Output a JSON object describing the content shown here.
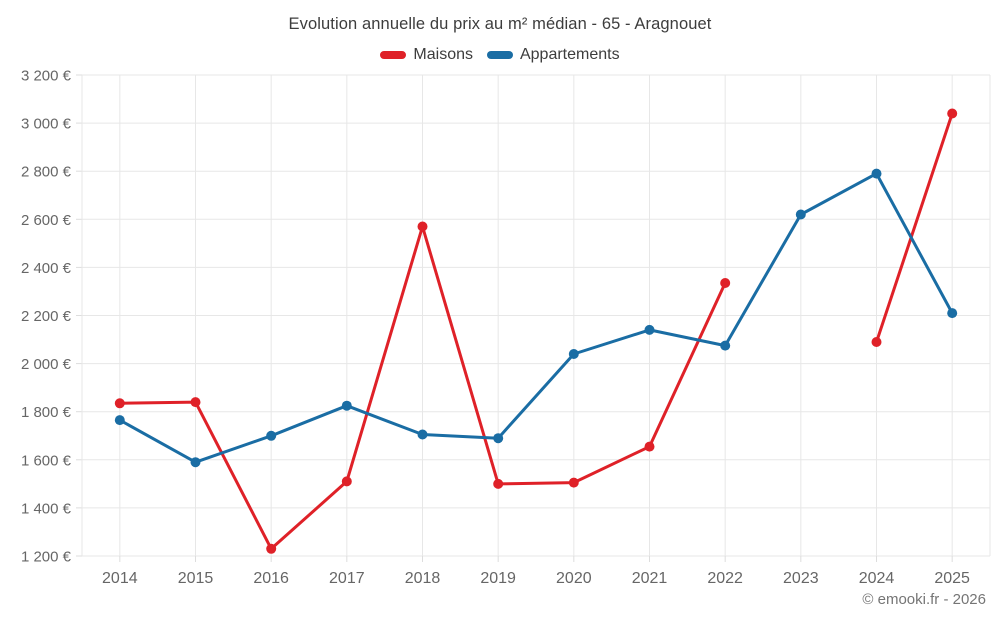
{
  "title": "Evolution annuelle du prix au m² médian - 65 - Aragnouet",
  "footer": "© emooki.fr - 2026",
  "colors": {
    "maisons": "#df2128",
    "appartements": "#1a6da4",
    "grid": "#e7e7e7",
    "tick": "#dddddd",
    "axis_text": "#666666"
  },
  "chart_data": {
    "type": "line",
    "title": "Evolution annuelle du prix au m² médian - 65 - Aragnouet",
    "categories": [
      "2014",
      "2015",
      "2016",
      "2017",
      "2018",
      "2019",
      "2020",
      "2021",
      "2022",
      "2023",
      "2024",
      "2025"
    ],
    "series": [
      {
        "name": "Maisons",
        "color": "#df2128",
        "values": [
          1835,
          1840,
          1230,
          1510,
          2570,
          1500,
          1505,
          1655,
          2335,
          null,
          2090,
          3040
        ]
      },
      {
        "name": "Appartements",
        "color": "#1a6da4",
        "values": [
          1765,
          1590,
          1700,
          1825,
          1705,
          1690,
          2040,
          2140,
          2075,
          2620,
          2790,
          2210
        ]
      }
    ],
    "xlabel": "",
    "ylabel": "",
    "ytick_format": "{value} €",
    "ylim": [
      1200,
      3200
    ],
    "ytick_step": 200,
    "grid": true,
    "legend_position": "top",
    "marker_radius": 5,
    "line_width": 3
  }
}
